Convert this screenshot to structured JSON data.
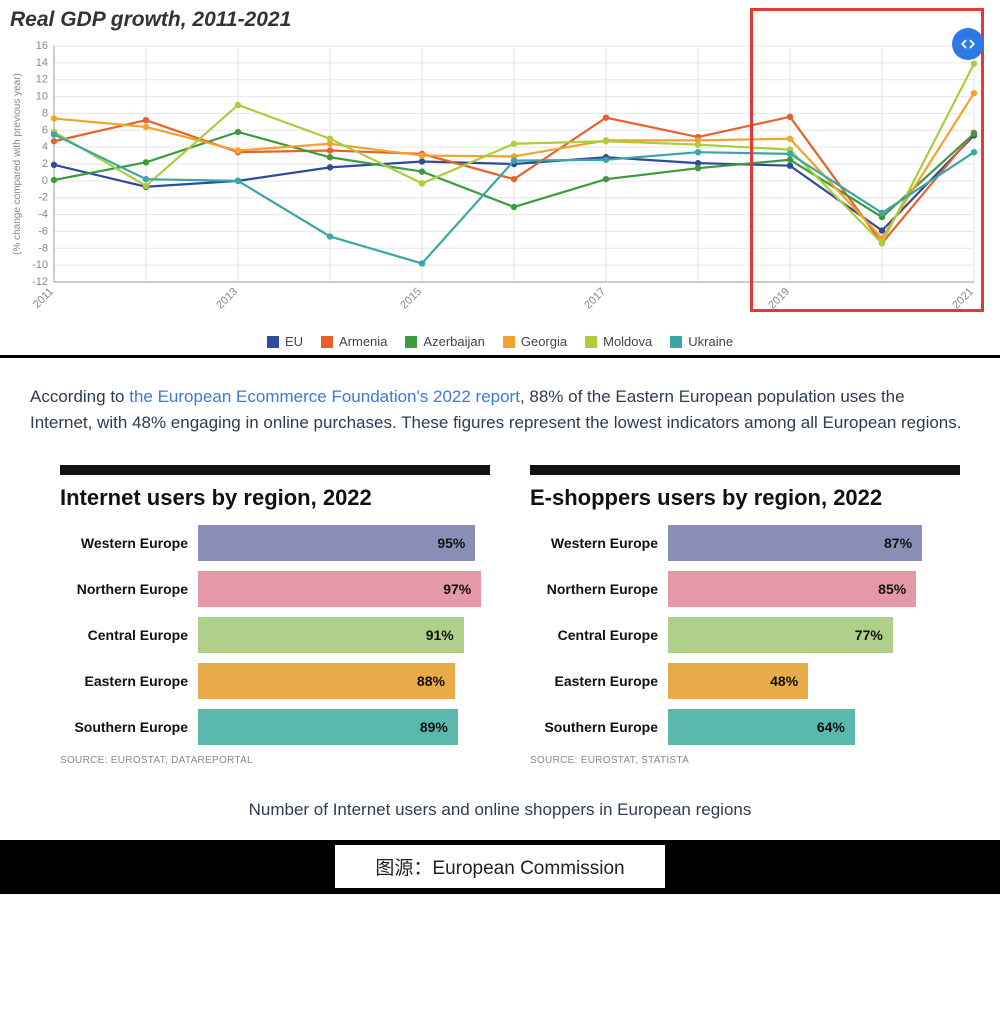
{
  "gdp_chart": {
    "title": "Real GDP growth, 2011-2021",
    "type": "line",
    "y_axis_label": "(% change compared with previous year)",
    "years": [
      2011,
      2012,
      2013,
      2014,
      2015,
      2016,
      2017,
      2018,
      2019,
      2020,
      2021
    ],
    "ylim": [
      -12,
      16
    ],
    "ytick_step": 2,
    "background_color": "#ffffff",
    "grid_color": "#e6e6e6",
    "axis_color": "#999999",
    "marker_radius": 3.2,
    "line_width": 2.2,
    "highlight_box": {
      "start_year": 2019,
      "end_year": 2021,
      "color": "#e53935"
    },
    "series": [
      {
        "name": "EU",
        "color": "#2f4b9b",
        "values": [
          1.9,
          -0.7,
          0.0,
          1.6,
          2.3,
          2.0,
          2.8,
          2.1,
          1.8,
          -5.9,
          5.4
        ]
      },
      {
        "name": "Armenia",
        "color": "#e5622b",
        "values": [
          4.7,
          7.2,
          3.4,
          3.6,
          3.2,
          0.2,
          7.5,
          5.2,
          7.6,
          -7.4,
          5.7
        ]
      },
      {
        "name": "Azerbaijan",
        "color": "#3d9b3d",
        "values": [
          0.1,
          2.2,
          5.8,
          2.8,
          1.1,
          -3.1,
          0.2,
          1.5,
          2.5,
          -4.3,
          5.6
        ]
      },
      {
        "name": "Georgia",
        "color": "#f2a22e",
        "values": [
          7.4,
          6.4,
          3.6,
          4.4,
          3.0,
          2.9,
          4.8,
          4.8,
          5.0,
          -6.8,
          10.4
        ]
      },
      {
        "name": "Moldova",
        "color": "#aecc3b",
        "values": [
          5.8,
          -0.6,
          9.0,
          5.0,
          -0.3,
          4.4,
          4.7,
          4.3,
          3.7,
          -7.4,
          13.9
        ]
      },
      {
        "name": "Ukraine",
        "color": "#3aa6a6",
        "values": [
          5.5,
          0.2,
          0.0,
          -6.6,
          -9.8,
          2.4,
          2.5,
          3.4,
          3.2,
          -3.8,
          3.4
        ]
      }
    ],
    "x_tick_years": [
      2011,
      2013,
      2015,
      2017,
      2019,
      2021
    ]
  },
  "paragraph": {
    "pre": "According to ",
    "link_text": "the European Ecommerce Foundation's 2022 report",
    "post": ", 88% of the Eastern European population uses the Internet, with 48% engaging in online purchases. These figures represent the lowest indicators among all European regions."
  },
  "bar_charts": {
    "max_value": 100,
    "region_colors": {
      "Western Europe": "#8a8fb8",
      "Northern Europe": "#e598a5",
      "Central Europe": "#afd08a",
      "Eastern Europe": "#e9aa4a",
      "Southern Europe": "#5ab9ac"
    },
    "charts": [
      {
        "title": "Internet users by region, 2022",
        "source": "SOURCE: EUROSTAT, DATAREPORTAL",
        "rows": [
          {
            "region": "Western Europe",
            "value": 95
          },
          {
            "region": "Northern Europe",
            "value": 97
          },
          {
            "region": "Central Europe",
            "value": 91
          },
          {
            "region": "Eastern Europe",
            "value": 88
          },
          {
            "region": "Southern Europe",
            "value": 89
          }
        ]
      },
      {
        "title": "E-shoppers users by region, 2022",
        "source": "SOURCE: EUROSTAT, STATISTA",
        "rows": [
          {
            "region": "Western Europe",
            "value": 87
          },
          {
            "region": "Northern Europe",
            "value": 85
          },
          {
            "region": "Central Europe",
            "value": 77
          },
          {
            "region": "Eastern Europe",
            "value": 48
          },
          {
            "region": "Southern Europe",
            "value": 64
          }
        ]
      }
    ]
  },
  "caption": "Number of Internet users and online shoppers in European regions",
  "footer": {
    "label": "图源：",
    "source": "European Commission"
  }
}
